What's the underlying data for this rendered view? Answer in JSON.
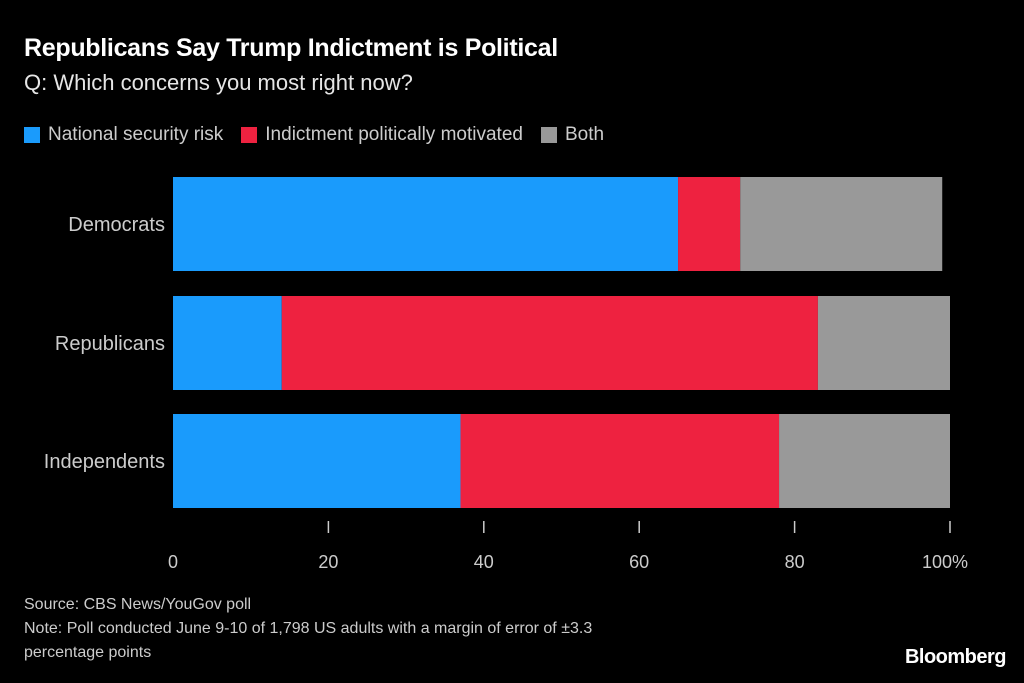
{
  "chart_data": {
    "type": "bar",
    "orientation": "horizontal",
    "stacked": true,
    "title": "Republicans Say Trump Indictment is Political",
    "subtitle": "Q: Which concerns you most right now?",
    "categories": [
      "Democrats",
      "Republicans",
      "Independents"
    ],
    "series": [
      {
        "name": "National security risk",
        "color": "#1a9bfc",
        "values": [
          65,
          14,
          37
        ]
      },
      {
        "name": "Indictment politically motivated",
        "color": "#ee2240",
        "values": [
          8,
          69,
          41
        ]
      },
      {
        "name": "Both",
        "color": "#999999",
        "values": [
          26,
          17,
          22
        ]
      }
    ],
    "xlim": [
      0,
      100
    ],
    "xticks": [
      0,
      20,
      40,
      60,
      80,
      100
    ],
    "xtick_labels": [
      "0",
      "20",
      "40",
      "60",
      "80",
      "100%"
    ],
    "xlabel": "",
    "ylabel": "",
    "grid": false,
    "legend_position": "top-left"
  },
  "footer": {
    "source": "Source: CBS News/YouGov poll",
    "note_line1": "Note: Poll conducted June 9-10 of 1,798 US adults with a margin of error of ±3.3",
    "note_line2": "percentage points"
  },
  "brand": "Bloomberg"
}
